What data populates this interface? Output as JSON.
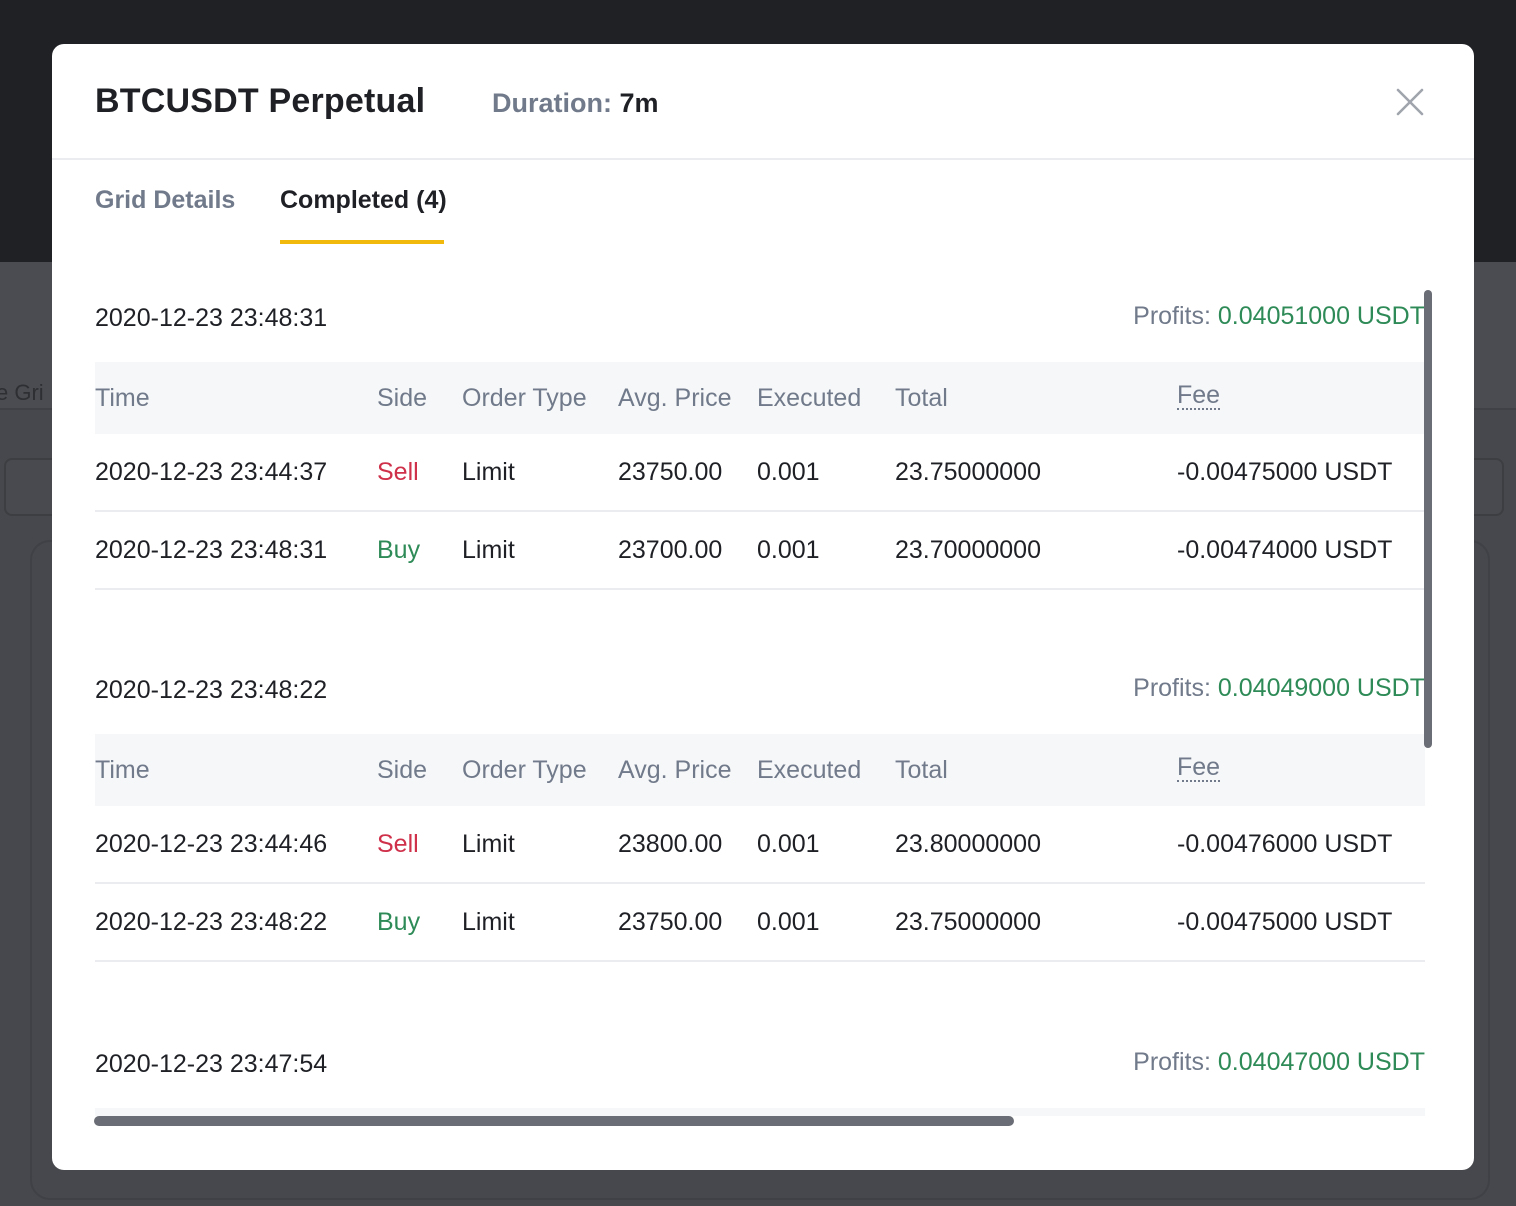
{
  "background": {
    "partial_text": "e Gri"
  },
  "modal": {
    "title": "BTCUSDT Perpetual",
    "duration_label": "Duration:",
    "duration_value": "7m",
    "close_icon": "close-icon"
  },
  "tabs": [
    {
      "label": "Grid Details",
      "active": false
    },
    {
      "label": "Completed (4)",
      "active": true
    }
  ],
  "columns": [
    "Time",
    "Side",
    "Order Type",
    "Avg. Price",
    "Executed",
    "Total",
    "Fee"
  ],
  "groups": [
    {
      "time": "2020-12-23 23:48:31",
      "profit_label": "Profits:",
      "profit_value": "0.04051000 USDT",
      "rows": [
        {
          "time": "2020-12-23 23:44:37",
          "side": "Sell",
          "type": "Limit",
          "price": "23750.00",
          "executed": "0.001",
          "total": "23.75000000",
          "fee": "-0.00475000 USDT"
        },
        {
          "time": "2020-12-23 23:48:31",
          "side": "Buy",
          "type": "Limit",
          "price": "23700.00",
          "executed": "0.001",
          "total": "23.70000000",
          "fee": "-0.00474000 USDT"
        }
      ]
    },
    {
      "time": "2020-12-23 23:48:22",
      "profit_label": "Profits:",
      "profit_value": "0.04049000 USDT",
      "rows": [
        {
          "time": "2020-12-23 23:44:46",
          "side": "Sell",
          "type": "Limit",
          "price": "23800.00",
          "executed": "0.001",
          "total": "23.80000000",
          "fee": "-0.00476000 USDT"
        },
        {
          "time": "2020-12-23 23:48:22",
          "side": "Buy",
          "type": "Limit",
          "price": "23750.00",
          "executed": "0.001",
          "total": "23.75000000",
          "fee": "-0.00475000 USDT"
        }
      ]
    },
    {
      "time": "2020-12-23 23:47:54",
      "profit_label": "Profits:",
      "profit_value": "0.04047000 USDT",
      "rows": []
    }
  ],
  "colors": {
    "sell": "#cf304a",
    "buy": "#2e8b57",
    "accent": "#f0b90b"
  }
}
